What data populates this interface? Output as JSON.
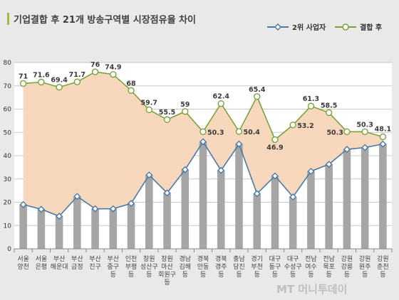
{
  "chart_data": {
    "type": "bar+line",
    "title": "기업결합 후 21개 방송구역별 시장점유율 차이",
    "ylim": [
      0,
      80
    ],
    "yticks": [
      0,
      10,
      20,
      30,
      40,
      50,
      60,
      70,
      80
    ],
    "grid": true,
    "legend_position": "top-right",
    "categories": [
      {
        "lines": [
          "서울",
          "양천"
        ]
      },
      {
        "lines": [
          "서울",
          "은평"
        ]
      },
      {
        "lines": [
          "부산",
          "해운대"
        ]
      },
      {
        "lines": [
          "부산",
          "금정"
        ]
      },
      {
        "lines": [
          "부산",
          "진구"
        ]
      },
      {
        "lines": [
          "부산",
          "중구",
          "등"
        ]
      },
      {
        "lines": [
          "인천",
          "부평",
          "등"
        ]
      },
      {
        "lines": [
          "창원",
          "성산구",
          "등"
        ]
      },
      {
        "lines": [
          "창원",
          "마산",
          "회원구",
          "등"
        ]
      },
      {
        "lines": [
          "경남",
          "김해",
          "등"
        ]
      },
      {
        "lines": [
          "경북",
          "안동",
          "등"
        ]
      },
      {
        "lines": [
          "경북",
          "경주",
          "등"
        ]
      },
      {
        "lines": [
          "충남",
          "당진",
          "등"
        ]
      },
      {
        "lines": [
          "경기",
          "부천",
          "등"
        ]
      },
      {
        "lines": [
          "대구",
          "동구",
          "등"
        ]
      },
      {
        "lines": [
          "대구",
          "수성구",
          "등"
        ]
      },
      {
        "lines": [
          "전남",
          "여수",
          "등"
        ]
      },
      {
        "lines": [
          "전남",
          "목포",
          "등"
        ]
      },
      {
        "lines": [
          "강원",
          "강릉",
          "등"
        ]
      },
      {
        "lines": [
          "강원",
          "원주",
          "등"
        ]
      },
      {
        "lines": [
          "강원",
          "춘천",
          "등"
        ]
      }
    ],
    "series": [
      {
        "name": "2위 사업자",
        "color": "#4a7aa8",
        "marker": "diamond",
        "values": [
          19,
          17,
          14,
          22.5,
          17.2,
          17.2,
          19.5,
          31.7,
          24,
          34,
          46,
          33.7,
          45,
          23.7,
          31.3,
          22.3,
          33.3,
          36.3,
          42.7,
          43.5,
          45
        ]
      },
      {
        "name": "결합 후",
        "color": "#7aa23c",
        "marker": "circle",
        "values": [
          71,
          71.6,
          69.4,
          71.7,
          76,
          74.9,
          68,
          59.7,
          55.5,
          59,
          50.3,
          62.4,
          50.4,
          65.4,
          46.9,
          53.2,
          61.3,
          58.5,
          50.3,
          50.3,
          48.1
        ],
        "labels": [
          "71",
          "71.6",
          "69.4",
          "71.7",
          "76",
          "74.9",
          "68",
          "59.7",
          "55.5",
          "59",
          "50.3",
          "62.4",
          "50.4",
          "65.4",
          "46.9",
          "53.2",
          "61.3",
          "58.5",
          "50.3",
          "50.3",
          "48.1"
        ]
      }
    ],
    "bar_color": "#a6a6a6",
    "fill_color": "#f8d8bc"
  },
  "watermark": "MT 머니투데이"
}
